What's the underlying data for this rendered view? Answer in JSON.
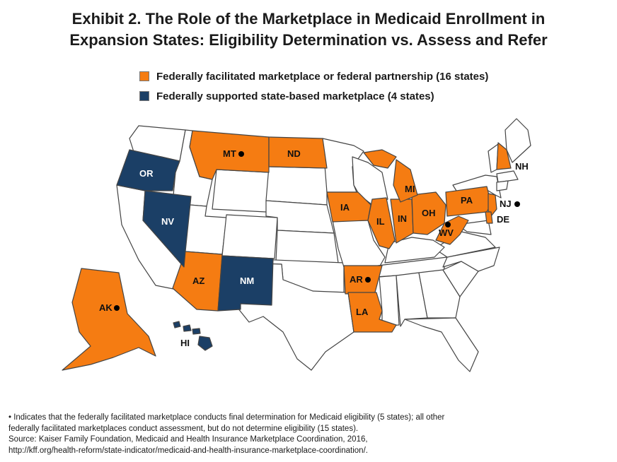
{
  "title": {
    "line1": "Exhibit 2. The Role of the Marketplace in Medicaid Enrollment in",
    "line2": "Expansion States: Eligibility Determination vs. Assess and Refer"
  },
  "legend": {
    "ffm": {
      "label": "Federally facilitated marketplace or federal partnership (16 states)",
      "color": "#f57c12"
    },
    "sbm": {
      "label": "Federally supported state-based marketplace (4 states)",
      "color": "#1b3f66"
    }
  },
  "colors": {
    "ffm": "#f57c12",
    "sbm": "#1b3f66",
    "other": "#ffffff",
    "border": "#444444"
  },
  "marker_icon": "filled-dot-icon",
  "labels": {
    "MT": "MT",
    "ND": "ND",
    "OR": "OR",
    "NV": "NV",
    "AZ": "AZ",
    "NM": "NM",
    "IA": "IA",
    "IL": "IL",
    "IN": "IN",
    "OH": "OH",
    "MI": "MI",
    "PA": "PA",
    "WV": "WV",
    "NJ": "NJ",
    "DE": "DE",
    "NH": "NH",
    "AR": "AR",
    "LA": "LA",
    "AK": "AK",
    "HI": "HI"
  },
  "notes": {
    "line1": "• Indicates that the federally facilitated marketplace conducts final determination for Medicaid eligibility (5 states); all other",
    "line2": "federally facilitated marketplaces conduct assessment, but do not determine eligibility (15 states).",
    "line3": "Source: Kaiser Family Foundation, Medicaid and Health Insurance Marketplace Coordination, 2016,",
    "line4": "http://kff.org/health-reform/state-indicator/medicaid-and-health-insurance-marketplace-coordination/."
  }
}
